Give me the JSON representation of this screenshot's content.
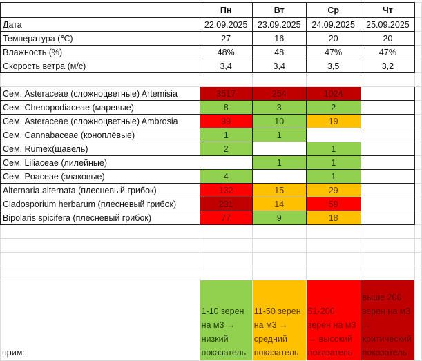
{
  "header": {
    "days": [
      "Пн",
      "Вт",
      "Ср",
      "Чт"
    ]
  },
  "weather": [
    {
      "label": "Дата",
      "values": [
        "22.09.2025",
        "23.09.2025",
        "24.09.2025",
        "25.09.2025"
      ]
    },
    {
      "label": "Температура (℃)",
      "values": [
        "27",
        "16",
        "20",
        "20"
      ]
    },
    {
      "label": "Влажность (%)",
      "values": [
        "48%",
        "48",
        "47%",
        "47%"
      ]
    },
    {
      "label": "Скорость ветра (м/с)",
      "values": [
        "3,4",
        "3,4",
        "3,5",
        "3,2"
      ]
    }
  ],
  "pollen": [
    {
      "label": "Сем. Asteraceae (сложноцветные) Artemisia",
      "values": [
        "3517",
        "254",
        "1024",
        ""
      ],
      "levels": [
        "dark",
        "dark",
        "dark",
        ""
      ]
    },
    {
      "label": "Сем. Chenopodiaceae (маревые)",
      "values": [
        "8",
        "3",
        "2",
        ""
      ],
      "levels": [
        "green",
        "green",
        "green",
        ""
      ]
    },
    {
      "label": "Сем. Asteraceae (сложноцветные) Ambrosia",
      "values": [
        "99",
        "10",
        "19",
        ""
      ],
      "levels": [
        "red",
        "green",
        "orange",
        ""
      ]
    },
    {
      "label": "Сем. Cannabaceae (коноплёвые)",
      "values": [
        "1",
        "1",
        "",
        ""
      ],
      "levels": [
        "green",
        "green",
        "",
        ""
      ]
    },
    {
      "label": "Сем. Rumex(щавель)",
      "values": [
        "2",
        "",
        "1",
        ""
      ],
      "levels": [
        "green",
        "",
        "green",
        ""
      ]
    },
    {
      "label": "Сем. Liliaceae (лилейные)",
      "values": [
        "",
        "1",
        "1",
        ""
      ],
      "levels": [
        "",
        "green",
        "green",
        ""
      ]
    },
    {
      "label": "Сем. Poaceae (злаковые)",
      "values": [
        "4",
        "",
        "1",
        ""
      ],
      "levels": [
        "green",
        "",
        "green",
        ""
      ]
    },
    {
      "label": "Alternaria alternata (плесневый грибок)",
      "values": [
        "132",
        "15",
        "29",
        ""
      ],
      "levels": [
        "red",
        "orange",
        "orange",
        ""
      ]
    },
    {
      "label": "Cladosporium herbarum (плесневый грибок)",
      "values": [
        "231",
        "14",
        "59",
        ""
      ],
      "levels": [
        "dark",
        "orange",
        "red",
        ""
      ]
    },
    {
      "label": "Bipolaris spicifera (плесневый грибок)",
      "values": [
        "77",
        "9",
        "18",
        ""
      ],
      "levels": [
        "red",
        "green",
        "orange",
        ""
      ]
    }
  ],
  "legend": {
    "note": "прим:",
    "items": [
      {
        "text": "1-10 зерен на м3 → низкий показатель",
        "level": "green"
      },
      {
        "text": "11-50 зерен на м3 → средний показатель",
        "level": "orange"
      },
      {
        "text": "51-200 зерен на м3 → высокий показатель",
        "level": "red"
      },
      {
        "text": "выше 200 зерен на м3 → критический показатель",
        "level": "dark"
      }
    ]
  },
  "colors": {
    "green": "#92d050",
    "orange": "#ffc000",
    "red": "#ff0000",
    "dark": "#c00000"
  }
}
